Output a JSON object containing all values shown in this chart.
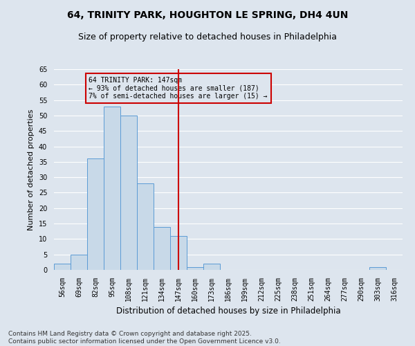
{
  "title1": "64, TRINITY PARK, HOUGHTON LE SPRING, DH4 4UN",
  "title2": "Size of property relative to detached houses in Philadelphia",
  "xlabel": "Distribution of detached houses by size in Philadelphia",
  "ylabel": "Number of detached properties",
  "categories": [
    "56sqm",
    "69sqm",
    "82sqm",
    "95sqm",
    "108sqm",
    "121sqm",
    "134sqm",
    "147sqm",
    "160sqm",
    "173sqm",
    "186sqm",
    "199sqm",
    "212sqm",
    "225sqm",
    "238sqm",
    "251sqm",
    "264sqm",
    "277sqm",
    "290sqm",
    "303sqm",
    "316sqm"
  ],
  "values": [
    2,
    5,
    36,
    53,
    50,
    28,
    14,
    11,
    1,
    2,
    0,
    0,
    0,
    0,
    0,
    0,
    0,
    0,
    0,
    1,
    0
  ],
  "bar_color": "#c8d9e8",
  "bar_edge_color": "#5b9bd5",
  "reference_line_index": 7,
  "annotation_title": "64 TRINITY PARK: 147sqm",
  "annotation_line1": "← 93% of detached houses are smaller (187)",
  "annotation_line2": "7% of semi-detached houses are larger (15) →",
  "annotation_box_color": "#cc0000",
  "ylim": [
    0,
    65
  ],
  "yticks": [
    0,
    5,
    10,
    15,
    20,
    25,
    30,
    35,
    40,
    45,
    50,
    55,
    60,
    65
  ],
  "footer1": "Contains HM Land Registry data © Crown copyright and database right 2025.",
  "footer2": "Contains public sector information licensed under the Open Government Licence v3.0.",
  "bg_color": "#dde5ee",
  "grid_color": "#ffffff",
  "title1_fontsize": 10,
  "title2_fontsize": 9,
  "xlabel_fontsize": 8.5,
  "ylabel_fontsize": 8,
  "tick_fontsize": 7,
  "footer_fontsize": 6.5
}
